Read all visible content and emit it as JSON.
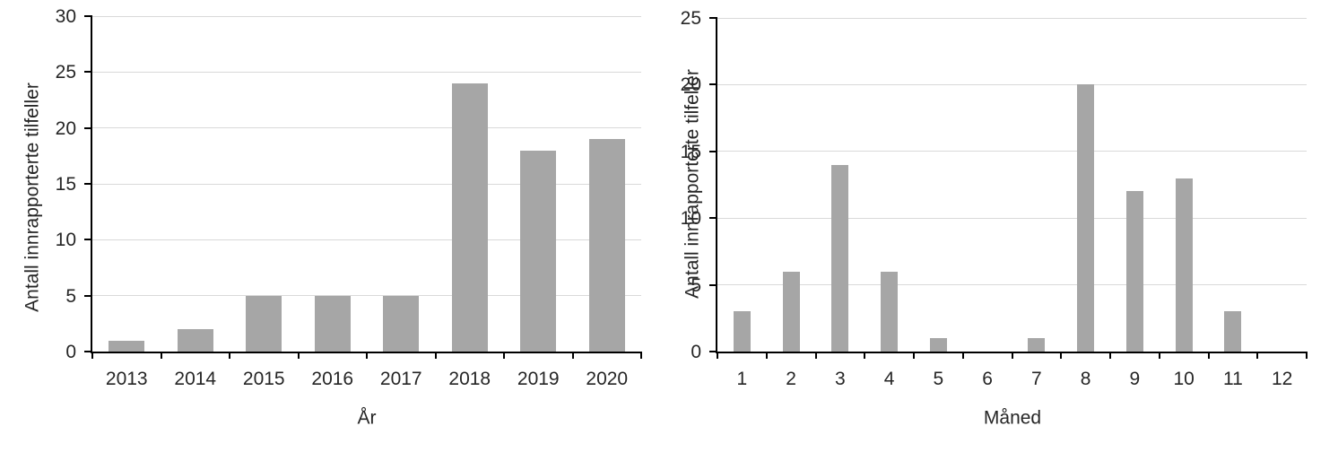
{
  "figure": {
    "background": "#ffffff"
  },
  "chart_data": [
    {
      "type": "bar",
      "title": "",
      "categories": [
        "2013",
        "2014",
        "2015",
        "2016",
        "2017",
        "2018",
        "2019",
        "2020"
      ],
      "values": [
        1,
        2,
        5,
        5,
        5,
        24,
        18,
        19
      ],
      "xlabel": "År",
      "ylabel": "Antall innrapporterte tilfeller",
      "ylim": [
        0,
        30
      ],
      "ytick_step": 5,
      "yticks": [
        0,
        5,
        10,
        15,
        20,
        25,
        30
      ],
      "grid": "horizontal",
      "legend": "none",
      "bar_color": "#a6a6a6",
      "gridline_color": "#d9d9d9",
      "axis_color": "#000000",
      "text_color": "#262626"
    },
    {
      "type": "bar",
      "title": "",
      "categories": [
        "1",
        "2",
        "3",
        "4",
        "5",
        "6",
        "7",
        "8",
        "9",
        "10",
        "11",
        "12"
      ],
      "values": [
        3,
        6,
        14,
        6,
        1,
        0,
        1,
        20,
        12,
        13,
        3,
        0
      ],
      "xlabel": "Måned",
      "ylabel": "Antall innrapporterte tilfeller",
      "ylim": [
        0,
        25
      ],
      "ytick_step": 5,
      "yticks": [
        0,
        5,
        10,
        15,
        20,
        25
      ],
      "grid": "horizontal",
      "legend": "none",
      "bar_color": "#a6a6a6",
      "gridline_color": "#d9d9d9",
      "axis_color": "#000000",
      "text_color": "#262626"
    }
  ]
}
